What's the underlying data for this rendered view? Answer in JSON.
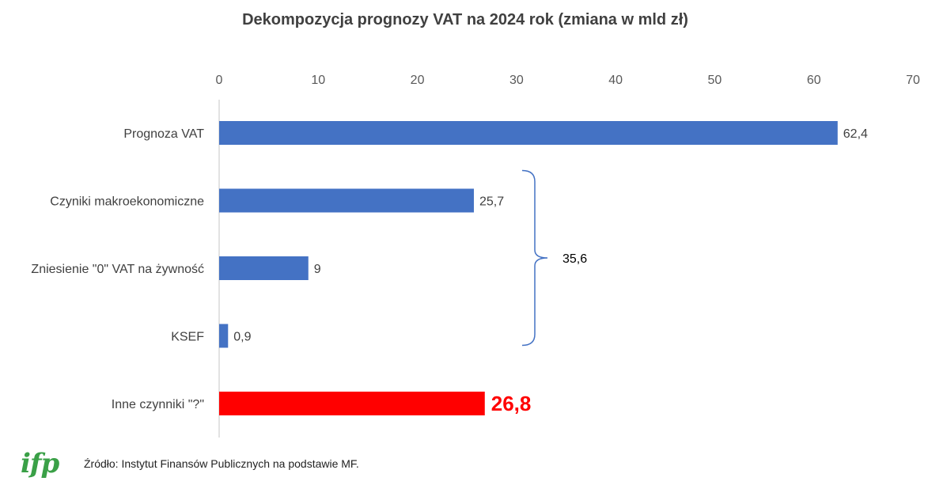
{
  "chart_data": {
    "type": "bar",
    "orientation": "horizontal",
    "title": "Dekompozycja prognozy VAT na 2024 rok (zmiana w mld zł)",
    "xlim": [
      0,
      70
    ],
    "ticks": [
      0,
      10,
      20,
      30,
      40,
      50,
      60,
      70
    ],
    "axis_position": "top",
    "categories": [
      "Prognoza VAT",
      "Czyniki makroekonomiczne",
      "Zniesienie \"0\" VAT na żywność",
      "KSEF",
      "Inne czynniki \"?\""
    ],
    "values": [
      62.4,
      25.7,
      9,
      0.9,
      26.8
    ],
    "value_labels": [
      "62,4",
      "25,7",
      "9",
      "0,9",
      "26,8"
    ],
    "bar_colors": [
      "#4472c4",
      "#4472c4",
      "#4472c4",
      "#4472c4",
      "#ff0000"
    ],
    "highlight_index": 4,
    "brace": {
      "from_index": 1,
      "to_index": 3,
      "label": "35,6",
      "color": "#4472c4"
    }
  },
  "footer": {
    "logo_text": "ifp",
    "source": "Źródło: Instytut Finansów Publicznych na podstawie MF."
  }
}
